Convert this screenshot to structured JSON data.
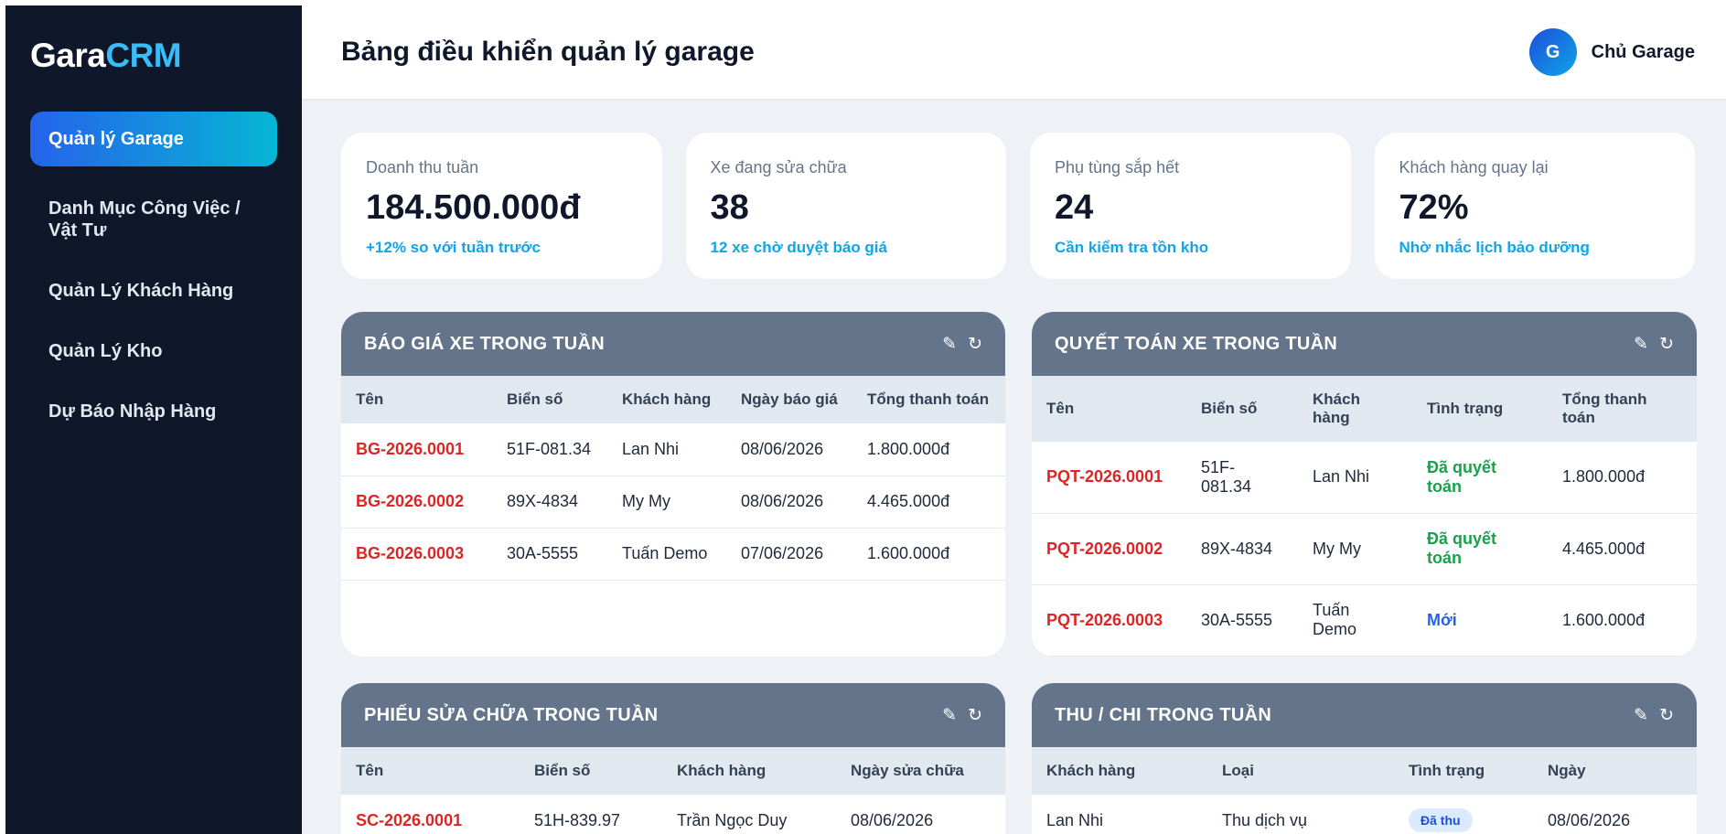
{
  "sidebar": {
    "logo_main": "Gara",
    "logo_accent": "CRM",
    "items": [
      {
        "label": "Quản lý Garage"
      },
      {
        "label": "Danh Mục Công Việc / Vật Tư"
      },
      {
        "label": "Quản Lý Khách Hàng"
      },
      {
        "label": "Quản Lý Kho"
      },
      {
        "label": "Dự Báo Nhập Hàng"
      }
    ]
  },
  "header": {
    "title": "Bảng điều khiển quản lý garage",
    "avatar_initial": "G",
    "user_name": "Chủ Garage"
  },
  "stats": [
    {
      "label": "Doanh thu tuần",
      "value": "184.500.000đ",
      "note": "+12% so với tuần trước"
    },
    {
      "label": "Xe đang sửa chữa",
      "value": "38",
      "note": "12 xe chờ duyệt báo giá"
    },
    {
      "label": "Phụ tùng sắp hết",
      "value": "24",
      "note": "Cần kiểm tra tồn kho"
    },
    {
      "label": "Khách hàng quay lại",
      "value": "72%",
      "note": "Nhờ nhắc lịch bảo dưỡng"
    }
  ],
  "icons": {
    "edit": "pencil-icon",
    "refresh": "refresh-icon"
  },
  "panels": {
    "quotes": {
      "title": "BÁO GIÁ XE TRONG TUẦN",
      "columns": [
        "Tên",
        "Biển số",
        "Khách hàng",
        "Ngày báo giá",
        "Tổng thanh toán"
      ],
      "rows": [
        [
          "BG-2026.0001",
          "51F-081.34",
          "Lan Nhi",
          "08/06/2026",
          "1.800.000đ"
        ],
        [
          "BG-2026.0002",
          "89X-4834",
          "My My",
          "08/06/2026",
          "4.465.000đ"
        ],
        [
          "BG-2026.0003",
          "30A-5555",
          "Tuấn Demo",
          "07/06/2026",
          "1.600.000đ"
        ]
      ]
    },
    "settlements": {
      "title": "QUYẾT TOÁN XE TRONG TUẦN",
      "columns": [
        "Tên",
        "Biển số",
        "Khách hàng",
        "Tình trạng",
        "Tổng thanh toán"
      ],
      "rows": [
        [
          "PQT-2026.0001",
          "51F-081.34",
          "Lan Nhi",
          "Đã quyết toán",
          "1.800.000đ"
        ],
        [
          "PQT-2026.0002",
          "89X-4834",
          "My My",
          "Đã quyết toán",
          "4.465.000đ"
        ],
        [
          "PQT-2026.0003",
          "30A-5555",
          "Tuấn Demo",
          "Mới",
          "1.600.000đ"
        ]
      ]
    },
    "repairs": {
      "title": "PHIẾU SỬA CHỮA TRONG TUẦN",
      "columns": [
        "Tên",
        "Biển số",
        "Khách hàng",
        "Ngày sửa chữa"
      ],
      "rows": [
        [
          "SC-2026.0001",
          "51H-839.97",
          "Trần Ngọc Duy",
          "08/06/2026"
        ]
      ]
    },
    "cashflow": {
      "title": "THU / CHI TRONG TUẦN",
      "columns": [
        "Khách hàng",
        "Loại",
        "Tình trạng",
        "Ngày"
      ],
      "rows": [
        [
          "Lan Nhi",
          "Thu dịch vụ",
          "Đã thu",
          "08/06/2026"
        ]
      ]
    }
  }
}
